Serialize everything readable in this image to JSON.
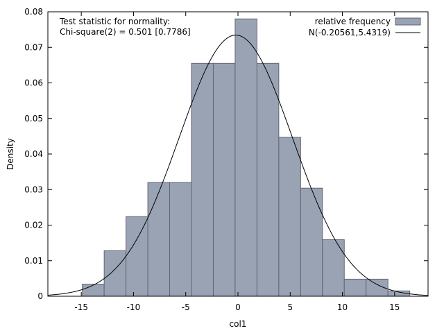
{
  "chart_data": {
    "type": "bar",
    "title": "",
    "xlabel": "col1",
    "ylabel": "Density",
    "xlim": [
      -18.2,
      18.2
    ],
    "ylim": [
      0,
      0.08
    ],
    "xticks": [
      -15,
      -10,
      -5,
      0,
      5,
      10,
      15
    ],
    "xtick_labels": [
      "-15",
      "-10",
      "-5",
      "0",
      "5",
      "10",
      "15"
    ],
    "yticks": [
      0,
      0.01,
      0.02,
      0.03,
      0.04,
      0.05,
      0.06,
      0.07,
      0.08
    ],
    "ytick_labels": [
      "0",
      "0.01",
      "0.02",
      "0.03",
      "0.04",
      "0.05",
      "0.06",
      "0.07",
      "0.08"
    ],
    "annotation": {
      "line1": "Test statistic for normality:",
      "line2": "Chi-square(2) = 0.501 [0.7786]"
    },
    "legend": {
      "placement": "top-right",
      "histogram_label": "relative frequency",
      "curve_label": "N(-0.20561,5.4319)"
    },
    "bin_width": 2.09,
    "bins": [
      {
        "left": -14.9,
        "right": -12.81,
        "density": 0.0034
      },
      {
        "left": -12.81,
        "right": -10.72,
        "density": 0.0128
      },
      {
        "left": -10.72,
        "right": -8.63,
        "density": 0.0224
      },
      {
        "left": -8.63,
        "right": -6.54,
        "density": 0.032
      },
      {
        "left": -6.54,
        "right": -4.45,
        "density": 0.032
      },
      {
        "left": -4.45,
        "right": -2.36,
        "density": 0.0655
      },
      {
        "left": -2.36,
        "right": -0.27,
        "density": 0.0655
      },
      {
        "left": -0.27,
        "right": 1.82,
        "density": 0.078
      },
      {
        "left": 1.82,
        "right": 3.91,
        "density": 0.0655
      },
      {
        "left": 3.91,
        "right": 6.0,
        "density": 0.0447
      },
      {
        "left": 6.0,
        "right": 8.09,
        "density": 0.0304
      },
      {
        "left": 8.09,
        "right": 10.18,
        "density": 0.0159
      },
      {
        "left": 10.18,
        "right": 12.27,
        "density": 0.0048
      },
      {
        "left": 12.27,
        "right": 14.36,
        "density": 0.0048
      },
      {
        "left": 14.36,
        "right": 16.45,
        "density": 0.0015
      }
    ],
    "normal_curve": {
      "mean": -0.20561,
      "sd": 5.4319
    },
    "colors": {
      "bar_fill": "#9aa3b3",
      "bar_edge": "#5f6673",
      "curve": "#000000",
      "frame": "#000000"
    }
  }
}
